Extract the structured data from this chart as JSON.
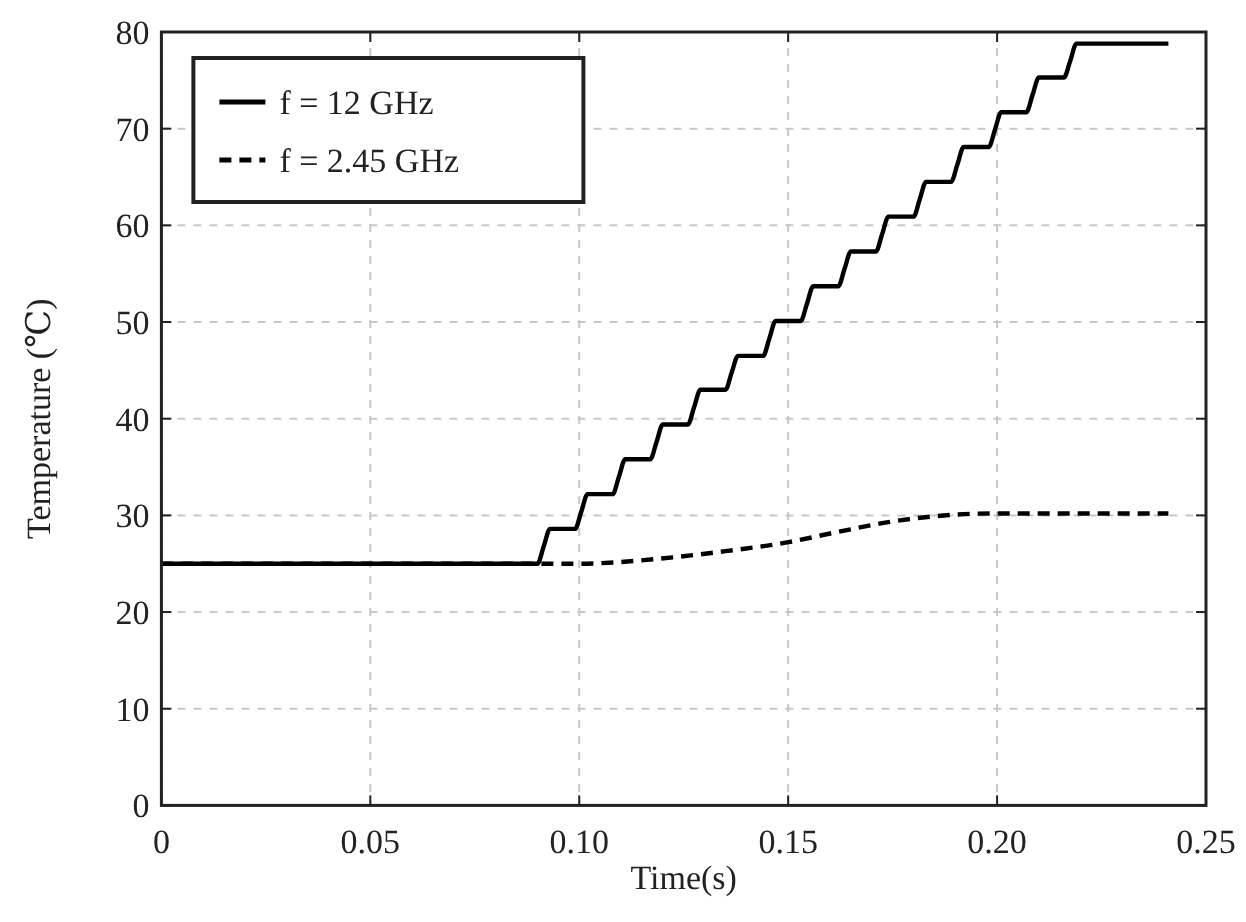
{
  "chart_data": {
    "type": "line",
    "xlabel": "Time(s)",
    "ylabel": "Temperature (℃)",
    "xlim": [
      0,
      0.25
    ],
    "ylim": [
      0,
      80
    ],
    "xticks": [
      0,
      0.05,
      {
        "value": 0.1,
        "label": "0.10"
      },
      {
        "value": 0.15,
        "label": "0.15"
      },
      {
        "value": 0.2,
        "label": "0.20"
      },
      0.25
    ],
    "yticks": [
      0,
      10,
      20,
      30,
      40,
      50,
      60,
      70,
      80
    ],
    "grid": true,
    "legend": "top left",
    "series": [
      {
        "name": "f = 12 GHz",
        "color": "#000000",
        "line_style": "solid",
        "x": [
          0,
          0.09,
          0.0915,
          0.093,
          0.099,
          0.1005,
          0.102,
          0.108,
          0.1095,
          0.111,
          0.117,
          0.1185,
          0.12,
          0.126,
          0.1275,
          0.129,
          0.135,
          0.1365,
          0.138,
          0.144,
          0.1455,
          0.147,
          0.153,
          0.1545,
          0.156,
          0.162,
          0.1635,
          0.165,
          0.171,
          0.1725,
          0.174,
          0.18,
          0.1815,
          0.183,
          0.189,
          0.1905,
          0.192,
          0.198,
          0.1995,
          0.201,
          0.207,
          0.2085,
          0.21,
          0.216,
          0.2175,
          0.219,
          0.241
        ],
        "values": [
          25,
          25,
          26.8,
          28.6,
          28.6,
          30.4,
          32.2,
          32.2,
          34.0,
          35.8,
          35.8,
          37.6,
          39.4,
          39.4,
          41.2,
          43.0,
          43.0,
          44.8,
          46.5,
          46.5,
          48.3,
          50.1,
          50.1,
          51.9,
          53.7,
          53.7,
          55.5,
          57.3,
          57.3,
          59.1,
          60.9,
          60.9,
          62.7,
          64.5,
          64.5,
          66.3,
          68.1,
          68.1,
          69.9,
          71.7,
          71.7,
          73.5,
          75.3,
          75.3,
          77.0,
          78.8,
          78.8
        ]
      },
      {
        "name": "f = 2.45 GHz",
        "color": "#000000",
        "line_style": "dashed",
        "x": [
          0,
          0.09,
          0.1,
          0.1187,
          0.135,
          0.1497,
          0.162,
          0.174,
          0.1987,
          0.241
        ],
        "values": [
          25,
          25,
          25,
          25.5,
          26.3,
          27.2,
          28.3,
          29.3,
          30.2,
          30.2
        ]
      }
    ]
  }
}
